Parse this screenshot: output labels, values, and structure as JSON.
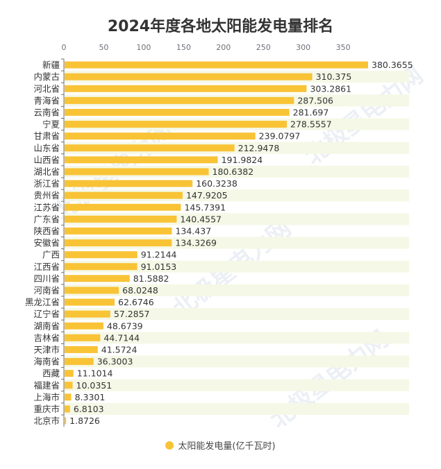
{
  "chart_data": {
    "type": "bar",
    "orientation": "horizontal",
    "title": "2024年度各地太阳能发电量排名",
    "categories": [
      "新疆",
      "内蒙古",
      "河北省",
      "青海省",
      "云南省",
      "宁夏",
      "甘肃省",
      "山东省",
      "山西省",
      "湖北省",
      "浙江省",
      "贵州省",
      "江苏省",
      "广东省",
      "陕西省",
      "安徽省",
      "广西",
      "江西省",
      "四川省",
      "河南省",
      "黑龙江省",
      "辽宁省",
      "湖南省",
      "吉林省",
      "天津市",
      "海南省",
      "西藏",
      "福建省",
      "上海市",
      "重庆市",
      "北京市"
    ],
    "series": [
      {
        "name": "太阳能发电量(亿千瓦时)",
        "values": [
          380.3655,
          310.375,
          303.2861,
          287.506,
          281.697,
          278.5557,
          239.0797,
          212.9478,
          191.9824,
          180.6382,
          160.3238,
          147.9205,
          145.7391,
          140.4557,
          134.437,
          134.3269,
          91.2144,
          91.0153,
          81.5882,
          68.0248,
          62.6746,
          57.2857,
          48.6739,
          44.7144,
          41.5724,
          36.3003,
          11.1014,
          10.0351,
          8.3301,
          6.8103,
          1.8726
        ],
        "labels": [
          "380.3655",
          "310.375",
          "303.2861",
          "287.506",
          "281.697",
          "278.5557",
          "239.0797",
          "212.9478",
          "191.9824",
          "180.6382",
          "160.3238",
          "147.9205",
          "145.7391",
          "140.4557",
          "134.437",
          "134.3269",
          "91.2144",
          "91.0153",
          "81.5882",
          "68.0248",
          "62.6746",
          "57.2857",
          "48.6739",
          "44.7144",
          "41.5724",
          "36.3003",
          "11.1014",
          "10.0351",
          "8.3301",
          "6.8103",
          "1.8726"
        ]
      }
    ],
    "x_ticks": [
      "0",
      "50",
      "100",
      "150",
      "200",
      "250",
      "300",
      "350"
    ],
    "xlim": [
      0,
      380.3655
    ],
    "axis_position": "top",
    "legend_position": "bottom-center",
    "grid": false
  },
  "legend": {
    "label": "太阳能发电量(亿千瓦时)"
  },
  "watermark": {
    "text": "北极星电力网"
  },
  "colors": {
    "bar": "#f9c336",
    "stripe": "#f5f8e6",
    "axis": "#6e7079",
    "text": "#333333",
    "watermark": "#c9d3e3"
  }
}
